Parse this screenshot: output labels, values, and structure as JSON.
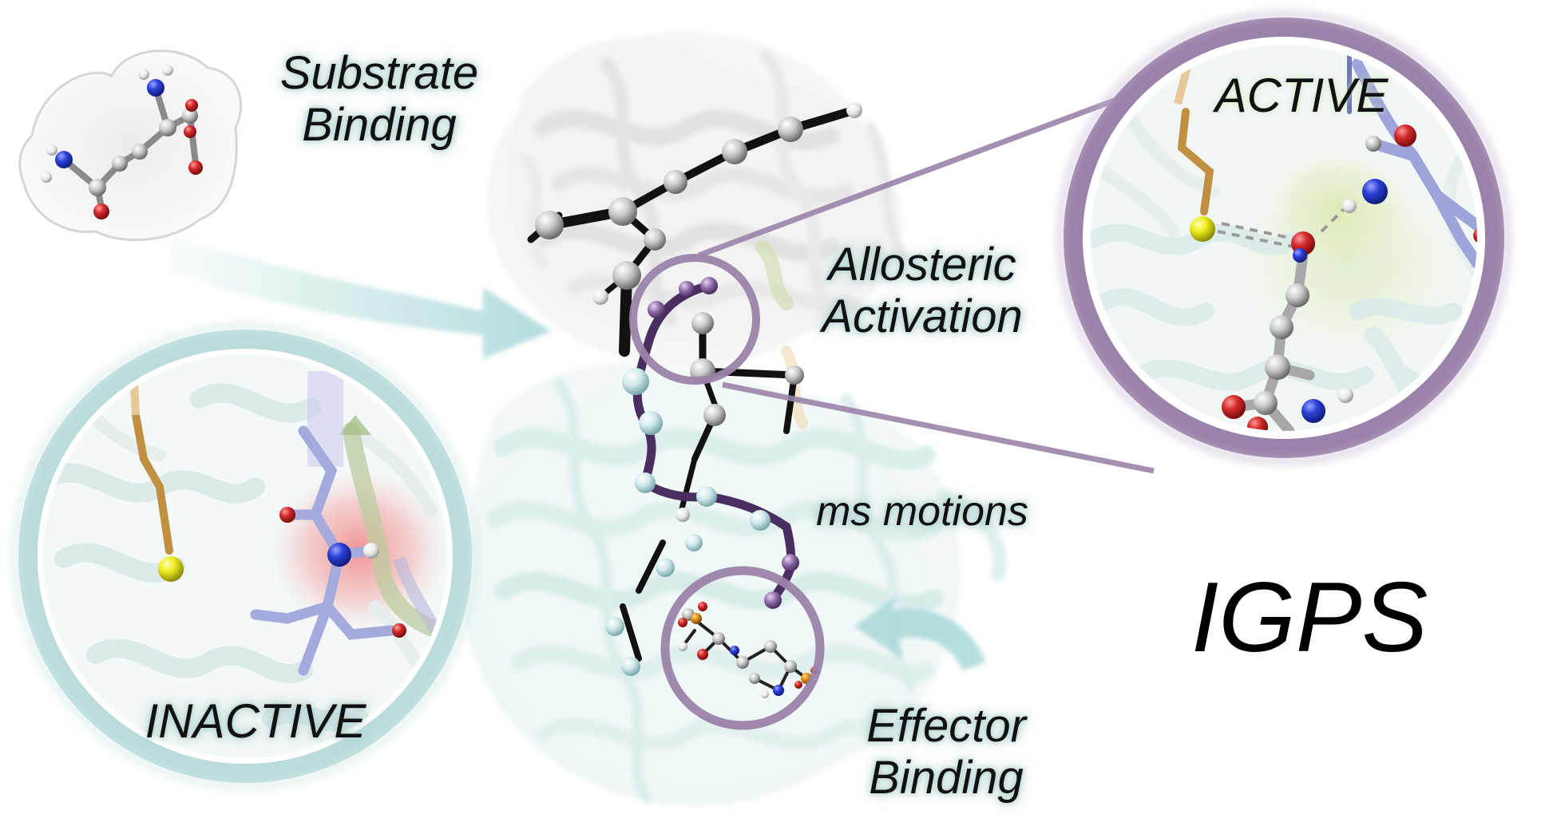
{
  "labels": {
    "substrate": [
      "Substrate",
      "Binding"
    ],
    "allosteric": [
      "Allosteric",
      "Activation"
    ],
    "ms_motions": "ms motions",
    "effector": [
      "Effector",
      "Binding"
    ],
    "active": "ACTIVE",
    "inactive": "INACTIVE",
    "protein": "IGPS"
  },
  "colors": {
    "active_ring": "#9a83a8",
    "inactive_ring": "#bcdcda",
    "arrow": "#a6d6d6",
    "pathway": "#5a3f70",
    "oxygen": "#d22a2a",
    "nitrogen": "#2b3fd6",
    "sulfur": "#e8e81a",
    "carbon": "#c8c8c8",
    "hydrogen": "#f2f2f2"
  }
}
